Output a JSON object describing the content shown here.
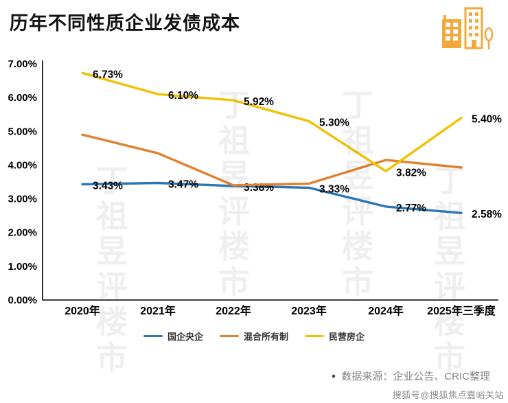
{
  "header": {
    "title": "历年不同性质企业发债成本"
  },
  "chart_data": {
    "type": "line",
    "title": "历年不同性质企业发债成本",
    "categories": [
      "2020年",
      "2021年",
      "2022年",
      "2023年",
      "2024年",
      "2025年三季度"
    ],
    "series": [
      {
        "name": "国企央企",
        "color": "#2776b8",
        "values": [
          3.43,
          3.47,
          3.38,
          3.33,
          2.77,
          2.58
        ],
        "labels": [
          "3.43%",
          "3.47%",
          "3.38%",
          "3.33%",
          "2.77%",
          "2.58%"
        ]
      },
      {
        "name": "混合所有制",
        "color": "#e0812f",
        "values": [
          4.9,
          4.35,
          3.4,
          3.45,
          4.15,
          3.93
        ],
        "labels": [
          null,
          null,
          null,
          null,
          null,
          null
        ]
      },
      {
        "name": "民营房企",
        "color": "#f2c100",
        "values": [
          6.73,
          6.1,
          5.92,
          5.3,
          3.82,
          5.4
        ],
        "labels": [
          "6.73%",
          "6.10%",
          "5.92%",
          "5.30%",
          "3.82%",
          "5.40%"
        ]
      }
    ],
    "ylim": [
      0,
      7
    ],
    "ytick_labels": [
      "0.00%",
      "1.00%",
      "2.00%",
      "3.00%",
      "4.00%",
      "5.00%",
      "6.00%",
      "7.00%"
    ],
    "xlabel": "",
    "ylabel": "",
    "grid": false,
    "legend_position": "bottom"
  },
  "footer": {
    "bullet": "●",
    "source": "数据来源：企业公告、CRIC整理"
  },
  "watermarks": {
    "corner": "搜狐号@搜狐焦点嘉峪关站",
    "pattern": "丁祖昱评楼市"
  }
}
